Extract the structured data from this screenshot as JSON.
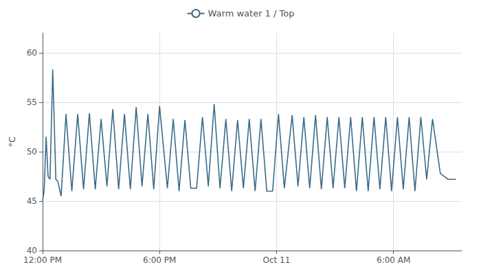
{
  "chart_data": {
    "type": "line",
    "ylabel": "°C",
    "x": [
      0.0,
      0.08,
      0.18,
      0.28,
      0.38,
      0.52,
      0.68,
      0.78,
      0.95,
      1.2,
      1.5,
      1.8,
      2.1,
      2.4,
      2.7,
      3.0,
      3.3,
      3.6,
      3.9,
      4.2,
      4.5,
      4.8,
      5.1,
      5.4,
      5.7,
      6.0,
      6.4,
      6.7,
      7.0,
      7.3,
      7.6,
      7.9,
      8.2,
      8.5,
      8.8,
      9.1,
      9.4,
      9.7,
      10.0,
      10.3,
      10.6,
      10.9,
      11.2,
      11.5,
      11.8,
      12.1,
      12.4,
      12.8,
      13.1,
      13.4,
      13.7,
      14.0,
      14.3,
      14.6,
      14.9,
      15.2,
      15.5,
      15.8,
      16.1,
      16.4,
      16.7,
      17.0,
      17.3,
      17.6,
      17.9,
      18.2,
      18.5,
      18.8,
      19.1,
      19.4,
      19.7,
      20.0,
      20.4,
      20.8,
      21.2
    ],
    "series": [
      {
        "name": "Warm water 1 / Top",
        "color": "#3a6b8a",
        "values": [
          45.0,
          46.1,
          51.5,
          47.5,
          47.2,
          58.3,
          47.2,
          47.0,
          45.5,
          53.8,
          46.0,
          53.8,
          46.2,
          53.9,
          46.2,
          53.3,
          46.5,
          54.3,
          46.2,
          53.8,
          46.2,
          54.5,
          46.5,
          53.8,
          46.2,
          54.6,
          46.3,
          53.3,
          46.0,
          53.2,
          46.3,
          46.3,
          53.5,
          46.5,
          54.8,
          46.3,
          53.3,
          46.0,
          53.2,
          46.3,
          53.3,
          46.0,
          53.3,
          46.0,
          46.0,
          53.8,
          46.3,
          53.7,
          46.5,
          53.5,
          46.3,
          53.7,
          46.2,
          53.5,
          46.3,
          53.5,
          46.3,
          53.5,
          46.0,
          53.5,
          46.0,
          53.5,
          46.2,
          53.5,
          46.0,
          53.5,
          46.2,
          53.5,
          46.0,
          53.5,
          47.2,
          53.3,
          47.8,
          47.2,
          47.2
        ]
      }
    ],
    "xlim": [
      0,
      21.5
    ],
    "xticks": [
      {
        "value": 0,
        "label": "12:00 PM"
      },
      {
        "value": 6,
        "label": "6:00 PM"
      },
      {
        "value": 12,
        "label": "Oct 11"
      },
      {
        "value": 18,
        "label": "6:00 AM"
      }
    ],
    "ylim": [
      40,
      62
    ],
    "yticks": [
      40,
      45,
      50,
      55,
      60
    ],
    "grid": true,
    "legend": "top"
  }
}
